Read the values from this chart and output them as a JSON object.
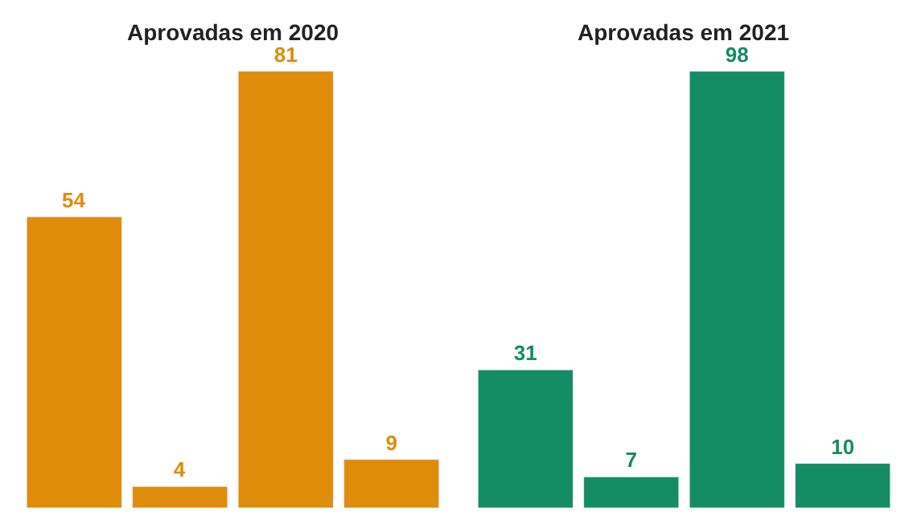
{
  "chart_data": [
    {
      "type": "bar",
      "title": "Aprovadas em 2020",
      "categories": [
        null,
        null,
        null,
        null
      ],
      "values": [
        54,
        4,
        81,
        9
      ],
      "color": "#df8c0a",
      "data_labels": true
    },
    {
      "type": "bar",
      "title": "Aprovadas em 2021",
      "categories": [
        null,
        null,
        null,
        null
      ],
      "values": [
        31,
        7,
        98,
        10
      ],
      "color": "#148c64",
      "data_labels": true
    }
  ]
}
